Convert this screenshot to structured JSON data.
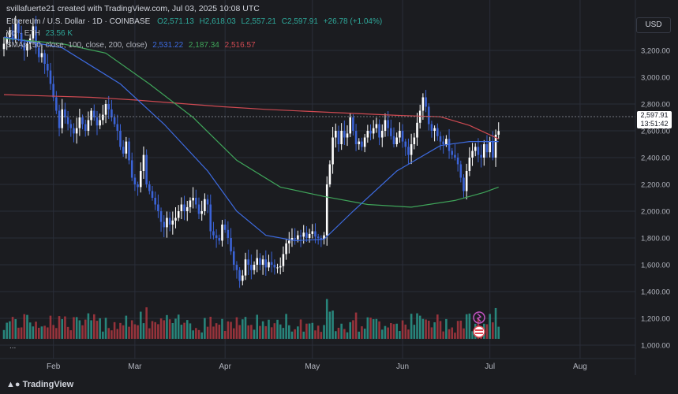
{
  "header": {
    "attribution": "svillafuerte21 created with TradingView.com, Jul 03, 2025 10:08 UTC"
  },
  "legend": {
    "symbol": "Ethereum / U.S. Dollar · 1D · COINBASE",
    "open": "O2,571.13",
    "high": "H2,618.03",
    "low": "L2,557.21",
    "close": "C2,597.91",
    "change": "+26.78 (+1.04%)",
    "volume_label": "Vol · ETH",
    "volume_value": "23.56 K",
    "sma_label": "SMAs (50, close, 100, close, 200, close)",
    "sma50": "2,531.22",
    "sma100": "2,187.34",
    "sma200": "2,516.57"
  },
  "currency": "USD",
  "current_price": "2,597.91",
  "countdown": "13:51:42",
  "footer_brand": "TradingView",
  "more": "...",
  "colors": {
    "up": "#2ea89a",
    "down": "#c03b44",
    "sma50": "#3d6be0",
    "sma100": "#3fa55a",
    "sma200": "#d04a52",
    "up_body": "#ffffff",
    "down_body": "#3b63d6"
  },
  "chart_data": {
    "type": "candlestick",
    "title": "Ethereum / U.S. Dollar · 1D · COINBASE",
    "x_tick_labels": [
      "Feb",
      "Mar",
      "Apr",
      "May",
      "Jun",
      "Jul",
      "Aug"
    ],
    "y_tick_labels": [
      "3,200.00",
      "3,000.00",
      "2,800.00",
      "2,600.00",
      "2,400.00",
      "2,200.00",
      "2,000.00",
      "1,800.00",
      "1,600.00",
      "1,400.00",
      "1,200.00",
      "1,000.00"
    ],
    "y_ticks": [
      3200,
      3000,
      2800,
      2600,
      2400,
      2200,
      2000,
      1800,
      1600,
      1400,
      1200,
      1000
    ],
    "ylim": [
      900,
      3400
    ],
    "x_range": [
      "2025-01-15",
      "2025-08-20"
    ],
    "month_starts": [
      "2025-02-01",
      "2025-03-01",
      "2025-04-01",
      "2025-05-01",
      "2025-06-01",
      "2025-07-01",
      "2025-08-01"
    ],
    "first_date": "2025-01-15",
    "closes": [
      3250,
      3300,
      3350,
      3280,
      3400,
      3330,
      3260,
      3200,
      3250,
      3290,
      3380,
      3220,
      3150,
      3180,
      3100,
      3050,
      2950,
      2850,
      2750,
      2620,
      2760,
      2700,
      2650,
      2620,
      2580,
      2620,
      2700,
      2650,
      2600,
      2680,
      2750,
      2700,
      2640,
      2680,
      2720,
      2800,
      2760,
      2700,
      2650,
      2600,
      2480,
      2430,
      2520,
      2380,
      2250,
      2200,
      2180,
      2300,
      2420,
      2200,
      2150,
      2100,
      2050,
      2000,
      1920,
      1880,
      1950,
      1900,
      1930,
      1950,
      2000,
      2050,
      2000,
      2030,
      2080,
      2100,
      2050,
      1980,
      2000,
      2090,
      2050,
      1850,
      1820,
      1800,
      1780,
      1900,
      1860,
      1800,
      1700,
      1600,
      1560,
      1480,
      1520,
      1640,
      1600,
      1560,
      1600,
      1650,
      1600,
      1640,
      1580,
      1620,
      1600,
      1580,
      1580,
      1590,
      1680,
      1760,
      1780,
      1800,
      1790,
      1820,
      1810,
      1840,
      1800,
      1830,
      1850,
      1810,
      1800,
      1790,
      1820,
      2200,
      2350,
      2550,
      2600,
      2500,
      2600,
      2550,
      2580,
      2700,
      2600,
      2500,
      2520,
      2480,
      2550,
      2600,
      2580,
      2620,
      2650,
      2550,
      2600,
      2680,
      2620,
      2560,
      2500,
      2550,
      2600,
      2520,
      2480,
      2420,
      2500,
      2550,
      2660,
      2750,
      2850,
      2780,
      2650,
      2600,
      2620,
      2560,
      2520,
      2500,
      2540,
      2450,
      2420,
      2400,
      2350,
      2250,
      2150,
      2300,
      2400,
      2450,
      2480,
      2420,
      2400,
      2500,
      2440,
      2520,
      2400,
      2571,
      2598
    ],
    "sma200_points": [
      [
        0,
        2870
      ],
      [
        15,
        2860
      ],
      [
        30,
        2850
      ],
      [
        45,
        2830
      ],
      [
        60,
        2805
      ],
      [
        75,
        2780
      ],
      [
        90,
        2760
      ],
      [
        105,
        2745
      ],
      [
        120,
        2730
      ],
      [
        135,
        2715
      ],
      [
        150,
        2705
      ],
      [
        160,
        2640
      ],
      [
        170,
        2540
      ]
    ],
    "sma100_points": [
      [
        0,
        3290
      ],
      [
        20,
        3250
      ],
      [
        35,
        3180
      ],
      [
        50,
        2950
      ],
      [
        65,
        2700
      ],
      [
        80,
        2380
      ],
      [
        95,
        2180
      ],
      [
        110,
        2110
      ],
      [
        125,
        2050
      ],
      [
        140,
        2030
      ],
      [
        155,
        2080
      ],
      [
        165,
        2140
      ],
      [
        170,
        2180
      ]
    ],
    "sma50_points": [
      [
        0,
        3300
      ],
      [
        20,
        3220
      ],
      [
        40,
        2950
      ],
      [
        55,
        2650
      ],
      [
        70,
        2300
      ],
      [
        80,
        2000
      ],
      [
        90,
        1820
      ],
      [
        100,
        1780
      ],
      [
        110,
        1790
      ],
      [
        120,
        2000
      ],
      [
        135,
        2300
      ],
      [
        150,
        2490
      ],
      [
        160,
        2520
      ],
      [
        170,
        2520
      ]
    ]
  }
}
